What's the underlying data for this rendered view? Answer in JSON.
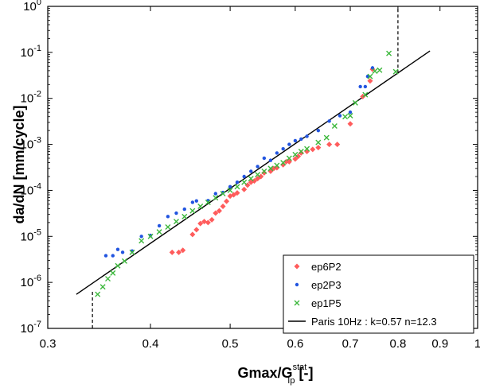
{
  "chart_data": {
    "type": "scatter",
    "title": "",
    "xlabel": "Gmax/G",
    "xlabel_sup": "stat",
    "xlabel_sub": "Ip",
    "xlabel_unit": " [-]",
    "ylabel": "da/dN [mm/cycle]",
    "x_scale": "log",
    "y_scale": "log",
    "xlim": [
      0.3,
      1.0
    ],
    "ylim": [
      1e-07,
      1.0
    ],
    "x_ticks": [
      {
        "value": 0.3,
        "label": "0.3"
      },
      {
        "value": 0.4,
        "label": "0.4"
      },
      {
        "value": 0.5,
        "label": "0.5"
      },
      {
        "value": 0.6,
        "label": "0.6"
      },
      {
        "value": 0.7,
        "label": "0.7"
      },
      {
        "value": 0.8,
        "label": "0.8"
      },
      {
        "value": 0.9,
        "label": "0.9"
      },
      {
        "value": 1.0,
        "label": "1"
      }
    ],
    "y_ticks": [
      {
        "exp": -7,
        "label_base": "10",
        "label_exp": "-7"
      },
      {
        "exp": -6,
        "label_base": "10",
        "label_exp": "-6"
      },
      {
        "exp": -5,
        "label_base": "10",
        "label_exp": "-5"
      },
      {
        "exp": -4,
        "label_base": "10",
        "label_exp": "-4"
      },
      {
        "exp": -3,
        "label_base": "10",
        "label_exp": "-3"
      },
      {
        "exp": -2,
        "label_base": "10",
        "label_exp": "-2"
      },
      {
        "exp": -1,
        "label_base": "10",
        "label_exp": "-1"
      },
      {
        "exp": 0,
        "label_base": "10",
        "label_exp": "0"
      }
    ],
    "grid": false,
    "legend_position": "bottom-right",
    "series": [
      {
        "name": "ep6P2",
        "marker": "diamond",
        "color": "#ff5c5c",
        "points": [
          [
            0.425,
            4.5e-06
          ],
          [
            0.433,
            4.5e-06
          ],
          [
            0.438,
            5e-06
          ],
          [
            0.45,
            1.1e-05
          ],
          [
            0.455,
            1.4e-05
          ],
          [
            0.46,
            1.9e-05
          ],
          [
            0.465,
            2.1e-05
          ],
          [
            0.47,
            2e-05
          ],
          [
            0.475,
            2.3e-05
          ],
          [
            0.48,
            3.2e-05
          ],
          [
            0.485,
            3.6e-05
          ],
          [
            0.49,
            4.5e-05
          ],
          [
            0.495,
            5.8e-05
          ],
          [
            0.5,
            7.5e-05
          ],
          [
            0.505,
            8e-05
          ],
          [
            0.51,
            8.8e-05
          ],
          [
            0.52,
            0.000105
          ],
          [
            0.525,
            0.00013
          ],
          [
            0.53,
            0.00015
          ],
          [
            0.535,
            0.00016
          ],
          [
            0.54,
            0.00018
          ],
          [
            0.545,
            0.0002
          ],
          [
            0.55,
            0.00024
          ],
          [
            0.56,
            0.00026
          ],
          [
            0.565,
            0.0003
          ],
          [
            0.57,
            0.00031
          ],
          [
            0.58,
            0.00036
          ],
          [
            0.585,
            0.00042
          ],
          [
            0.59,
            0.00042
          ],
          [
            0.6,
            0.00048
          ],
          [
            0.605,
            0.00055
          ],
          [
            0.61,
            0.00065
          ],
          [
            0.62,
            0.0007
          ],
          [
            0.63,
            0.00078
          ],
          [
            0.64,
            0.00085
          ],
          [
            0.66,
            0.001
          ],
          [
            0.675,
            0.001
          ],
          [
            0.7,
            0.0028
          ],
          [
            0.725,
            0.011
          ],
          [
            0.74,
            0.024
          ],
          [
            0.745,
            0.043
          ]
        ]
      },
      {
        "name": "ep2P3",
        "marker": "dot",
        "color": "#2255e0",
        "points": [
          [
            0.353,
            3.8e-06
          ],
          [
            0.36,
            3.8e-06
          ],
          [
            0.365,
            5.2e-06
          ],
          [
            0.37,
            4.5e-06
          ],
          [
            0.38,
            4.8e-06
          ],
          [
            0.39,
            1e-05
          ],
          [
            0.4,
            1.05e-05
          ],
          [
            0.41,
            1.7e-05
          ],
          [
            0.42,
            2.7e-05
          ],
          [
            0.43,
            3.2e-05
          ],
          [
            0.44,
            3.9e-05
          ],
          [
            0.45,
            5.5e-05
          ],
          [
            0.455,
            5.9e-05
          ],
          [
            0.47,
            6e-05
          ],
          [
            0.48,
            8.5e-05
          ],
          [
            0.49,
            9e-05
          ],
          [
            0.5,
            0.00012
          ],
          [
            0.51,
            0.00015
          ],
          [
            0.52,
            0.0002
          ],
          [
            0.53,
            0.00026
          ],
          [
            0.54,
            0.00033
          ],
          [
            0.55,
            0.0005
          ],
          [
            0.56,
            0.00045
          ],
          [
            0.57,
            0.00065
          ],
          [
            0.58,
            0.0008
          ],
          [
            0.59,
            0.001
          ],
          [
            0.6,
            0.0012
          ],
          [
            0.61,
            0.0013
          ],
          [
            0.62,
            0.0015
          ],
          [
            0.64,
            0.002
          ],
          [
            0.66,
            0.0032
          ],
          [
            0.68,
            0.0042
          ],
          [
            0.7,
            0.005
          ],
          [
            0.72,
            0.018
          ],
          [
            0.73,
            0.018
          ],
          [
            0.735,
            0.03
          ],
          [
            0.745,
            0.046
          ]
        ]
      },
      {
        "name": "ep1P5",
        "marker": "x",
        "color": "#3cb83c",
        "points": [
          [
            0.345,
            5.5e-07
          ],
          [
            0.35,
            8e-07
          ],
          [
            0.355,
            1.2e-06
          ],
          [
            0.36,
            1.6e-06
          ],
          [
            0.365,
            2.3e-06
          ],
          [
            0.372,
            2.9e-06
          ],
          [
            0.38,
            4.5e-06
          ],
          [
            0.39,
            8e-06
          ],
          [
            0.4,
            1e-05
          ],
          [
            0.41,
            1.25e-05
          ],
          [
            0.42,
            1.6e-05
          ],
          [
            0.43,
            2.1e-05
          ],
          [
            0.44,
            2.7e-05
          ],
          [
            0.45,
            3.6e-05
          ],
          [
            0.46,
            4.5e-05
          ],
          [
            0.47,
            5.5e-05
          ],
          [
            0.48,
            6.9e-05
          ],
          [
            0.49,
            8.5e-05
          ],
          [
            0.5,
            0.0001
          ],
          [
            0.51,
            0.00012
          ],
          [
            0.52,
            0.00015
          ],
          [
            0.53,
            0.00018
          ],
          [
            0.54,
            0.00022
          ],
          [
            0.55,
            0.00026
          ],
          [
            0.56,
            0.0003
          ],
          [
            0.57,
            0.00035
          ],
          [
            0.58,
            0.0004
          ],
          [
            0.59,
            0.0005
          ],
          [
            0.6,
            0.0006
          ],
          [
            0.61,
            0.0007
          ],
          [
            0.62,
            0.0008
          ],
          [
            0.64,
            0.0011
          ],
          [
            0.655,
            0.0014
          ],
          [
            0.67,
            0.0025
          ],
          [
            0.69,
            0.004
          ],
          [
            0.7,
            0.0042
          ],
          [
            0.71,
            0.008
          ],
          [
            0.73,
            0.012
          ],
          [
            0.74,
            0.03
          ],
          [
            0.75,
            0.039
          ],
          [
            0.76,
            0.041
          ],
          [
            0.78,
            0.095
          ],
          [
            0.795,
            0.038
          ]
        ]
      },
      {
        "name": "Paris 10Hz : k=0.57 n=12.3",
        "marker": "line",
        "color": "#000000",
        "line": {
          "k": 0.57,
          "n": 12.3,
          "x_range": [
            0.325,
            0.875
          ]
        }
      }
    ],
    "annotations": [
      {
        "type": "dashed-vline",
        "x": 0.34,
        "y_from": 1e-07,
        "y_to": 7e-07
      },
      {
        "type": "dashed-vline",
        "x": 0.8,
        "y_from": 0.035,
        "y_to": 1.0
      }
    ]
  }
}
